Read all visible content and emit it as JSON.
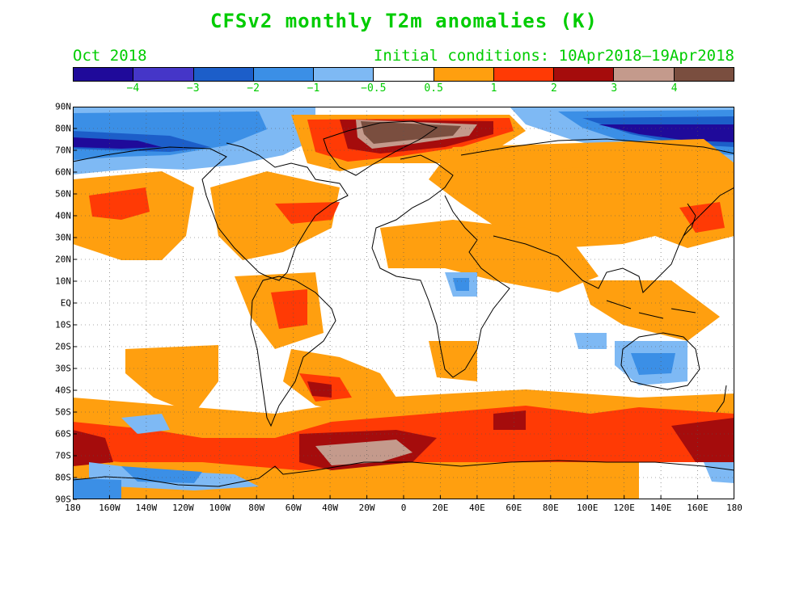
{
  "title": "CFSv2 monthly T2m anomalies (K)",
  "period": "Oct 2018",
  "initial_conditions": "Initial conditions: 10Apr2018–19Apr2018",
  "colorbar": {
    "colors": [
      "#1f0a9a",
      "#4536c8",
      "#1c5ec9",
      "#3b8fe6",
      "#7eb9f4",
      "#ffffff",
      "#ff9f0f",
      "#ff3a05",
      "#a50c0c",
      "#c49a8c",
      "#7a4e3f"
    ],
    "labels": [
      "−4",
      "−3",
      "−2",
      "−1",
      "−0.5",
      "0.5",
      "1",
      "2",
      "3",
      "4"
    ]
  },
  "axes": {
    "lat_labels": [
      "90N",
      "80N",
      "70N",
      "60N",
      "50N",
      "40N",
      "30N",
      "20N",
      "10N",
      "EQ",
      "10S",
      "20S",
      "30S",
      "40S",
      "50S",
      "60S",
      "70S",
      "80S",
      "90S"
    ],
    "lon_labels": [
      "180",
      "160W",
      "140W",
      "120W",
      "100W",
      "80W",
      "60W",
      "40W",
      "20W",
      "0",
      "20E",
      "40E",
      "60E",
      "80E",
      "100E",
      "120E",
      "140E",
      "160E",
      "180"
    ]
  }
}
